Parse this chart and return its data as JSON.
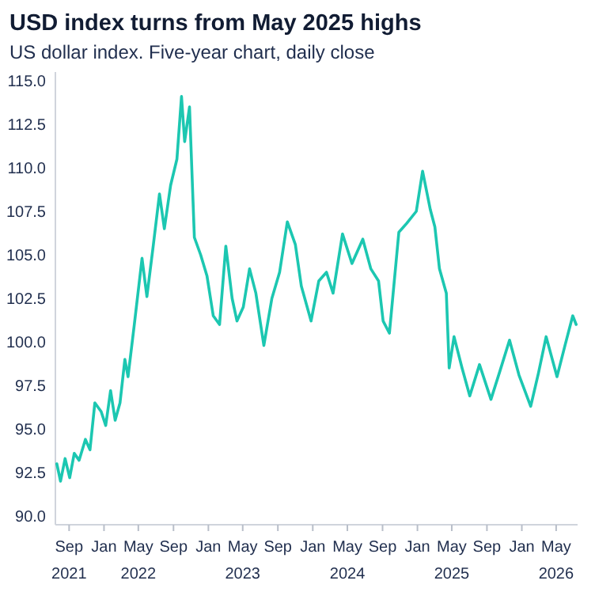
{
  "chart_data": {
    "type": "line",
    "title": "USD index turns from May 2025 highs",
    "subtitle": "US dollar index. Five-year chart, daily close",
    "x": [
      "2021-07-20",
      "2021-08-02",
      "2021-08-18",
      "2021-09-03",
      "2021-09-19",
      "2021-10-06",
      "2021-10-28",
      "2021-11-13",
      "2021-11-30",
      "2021-12-22",
      "2022-01-07",
      "2022-01-24",
      "2022-02-09",
      "2022-02-26",
      "2022-03-15",
      "2022-03-26",
      "2022-04-17",
      "2022-05-14",
      "2022-05-31",
      "2022-06-22",
      "2022-07-14",
      "2022-07-31",
      "2022-08-22",
      "2022-09-13",
      "2022-09-29",
      "2022-10-10",
      "2022-10-27",
      "2022-11-13",
      "2022-12-05",
      "2022-12-27",
      "2023-01-18",
      "2023-02-09",
      "2023-03-03",
      "2023-03-25",
      "2023-04-11",
      "2023-05-03",
      "2023-05-25",
      "2023-06-16",
      "2023-07-14",
      "2023-08-11",
      "2023-09-07",
      "2023-10-04",
      "2023-11-01",
      "2023-11-22",
      "2023-12-26",
      "2024-01-22",
      "2024-02-18",
      "2024-03-12",
      "2024-04-14",
      "2024-05-17",
      "2024-06-24",
      "2024-07-22",
      "2024-08-18",
      "2024-09-03",
      "2024-09-25",
      "2024-10-28",
      "2024-11-24",
      "2024-12-28",
      "2025-01-19",
      "2025-02-15",
      "2025-03-03",
      "2025-03-19",
      "2025-04-12",
      "2025-04-22",
      "2025-05-09",
      "2025-06-06",
      "2025-07-03",
      "2025-08-06",
      "2025-09-15",
      "2025-10-16",
      "2025-11-19",
      "2025-12-22",
      "2026-02-01",
      "2026-02-28",
      "2026-03-27",
      "2026-05-04",
      "2026-06-01",
      "2026-06-28",
      "2026-07-10"
    ],
    "series": [
      {
        "color": "#1cc7b1",
        "values": [
          93.0,
          92.0,
          93.3,
          92.2,
          93.6,
          93.2,
          94.4,
          93.8,
          96.5,
          96.0,
          95.2,
          97.2,
          95.5,
          96.5,
          99.0,
          98.0,
          101.0,
          104.8,
          102.6,
          105.5,
          108.5,
          106.5,
          109.0,
          110.5,
          114.1,
          111.5,
          113.5,
          106.0,
          105.0,
          103.8,
          101.5,
          101.0,
          105.5,
          102.5,
          101.2,
          102.0,
          104.2,
          102.8,
          99.8,
          102.5,
          104.0,
          106.9,
          105.6,
          103.2,
          101.2,
          103.5,
          104.0,
          102.8,
          106.2,
          104.5,
          105.9,
          104.2,
          103.5,
          101.2,
          100.5,
          106.3,
          106.8,
          107.5,
          109.8,
          107.6,
          106.6,
          104.2,
          102.8,
          98.5,
          100.3,
          98.5,
          96.9,
          98.7,
          96.7,
          98.3,
          100.1,
          98.1,
          96.3,
          98.2,
          100.3,
          98.0,
          99.8,
          101.5,
          101.0
        ]
      }
    ],
    "xlim": [
      "2021-07-15",
      "2026-07-15"
    ],
    "xticks": [
      {
        "value": "2021-09-01",
        "label": "Sep 2021"
      },
      {
        "value": "2022-01-01",
        "label": "Jan"
      },
      {
        "value": "2022-05-01",
        "label": "May 2022"
      },
      {
        "value": "2022-09-01",
        "label": "Sep"
      },
      {
        "value": "2023-01-01",
        "label": "Jan"
      },
      {
        "value": "2023-05-01",
        "label": "May 2023"
      },
      {
        "value": "2023-09-01",
        "label": "Sep"
      },
      {
        "value": "2024-01-01",
        "label": "Jan"
      },
      {
        "value": "2024-05-01",
        "label": "May 2024"
      },
      {
        "value": "2024-09-01",
        "label": "Sep"
      },
      {
        "value": "2025-01-01",
        "label": "Jan"
      },
      {
        "value": "2025-05-01",
        "label": "May 2025"
      },
      {
        "value": "2025-09-01",
        "label": "Sep"
      },
      {
        "value": "2026-01-01",
        "label": "Jan"
      },
      {
        "value": "2026-05-01",
        "label": "May 2026"
      }
    ],
    "ylim": [
      89.5,
      115.5
    ],
    "yticks": [
      {
        "value": 90,
        "label": "90.0"
      },
      {
        "value": 92.5,
        "label": "92.5"
      },
      {
        "value": 95,
        "label": "95.0"
      },
      {
        "value": 97.5,
        "label": "97.5"
      },
      {
        "value": 100,
        "label": "100.0"
      },
      {
        "value": 102.5,
        "label": "102.5"
      },
      {
        "value": 105,
        "label": "105.0"
      },
      {
        "value": 107.5,
        "label": "107.5"
      },
      {
        "value": 110,
        "label": "110.0"
      },
      {
        "value": 112.5,
        "label": "112.5"
      },
      {
        "value": 115,
        "label": "115.0"
      }
    ],
    "grid": false,
    "line_style": "solid",
    "marker": "none"
  }
}
